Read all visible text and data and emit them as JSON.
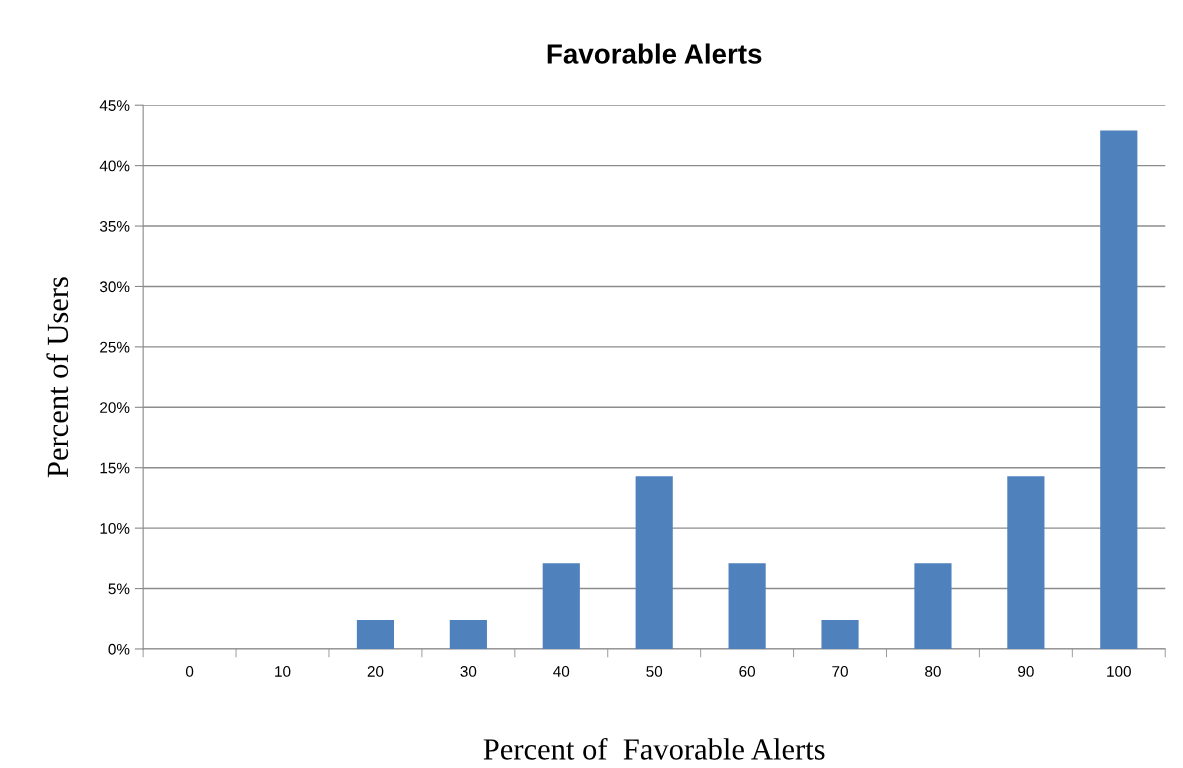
{
  "chart_data": {
    "type": "bar",
    "title": "Favorable Alerts",
    "xlabel": "Percent of  Favorable Alerts",
    "ylabel": "Percent of Users",
    "categories": [
      "0",
      "10",
      "20",
      "30",
      "40",
      "50",
      "60",
      "70",
      "80",
      "90",
      "100"
    ],
    "values": [
      0,
      0,
      2.4,
      2.4,
      7.1,
      14.3,
      7.1,
      2.4,
      7.1,
      14.3,
      42.9
    ],
    "color": "#4f81bd",
    "ylim": [
      0,
      45
    ],
    "yticks": [
      {
        "value": 0,
        "label": "0%"
      },
      {
        "value": 5,
        "label": "5%"
      },
      {
        "value": 10,
        "label": "10%"
      },
      {
        "value": 15,
        "label": "15%"
      },
      {
        "value": 20,
        "label": "20%"
      },
      {
        "value": 25,
        "label": "25%"
      },
      {
        "value": 30,
        "label": "30%"
      },
      {
        "value": 35,
        "label": "35%"
      },
      {
        "value": 40,
        "label": "40%"
      },
      {
        "value": 45,
        "label": "45%"
      }
    ],
    "grid": "y",
    "legend": false
  }
}
